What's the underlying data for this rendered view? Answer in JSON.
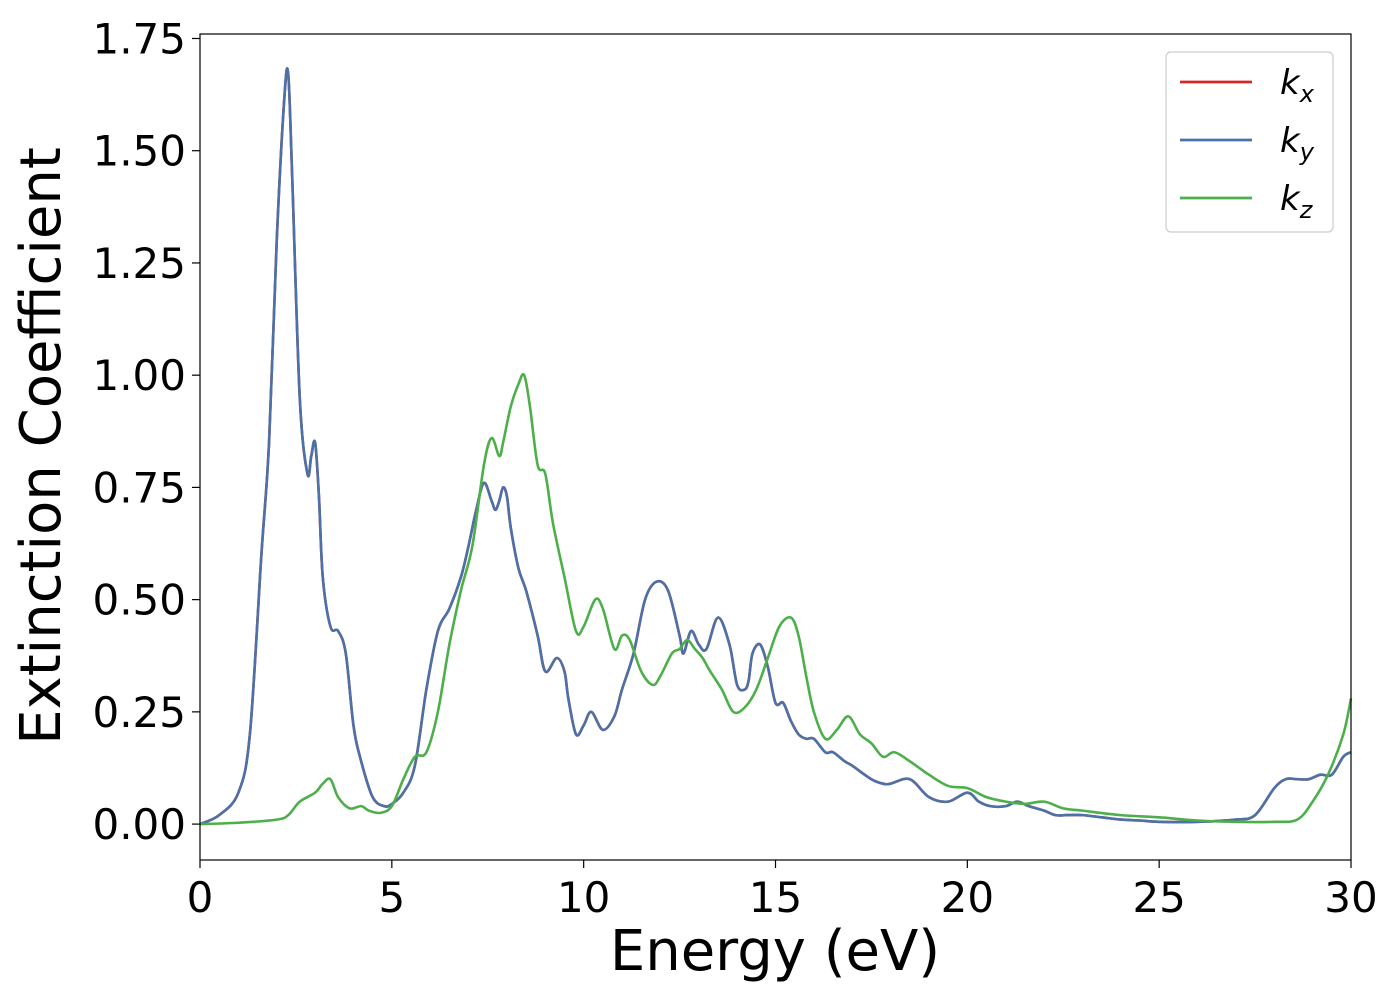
{
  "chart_data": {
    "type": "line",
    "xlabel": "Energy (eV)",
    "ylabel": "Extinction Coefficient",
    "xlim": [
      0,
      30
    ],
    "ylim": [
      -0.08,
      1.76
    ],
    "xticks": [
      0,
      5,
      10,
      15,
      20,
      25,
      30
    ],
    "xtick_labels": [
      "0",
      "5",
      "10",
      "15",
      "20",
      "25",
      "30"
    ],
    "yticks": [
      0.0,
      0.25,
      0.5,
      0.75,
      1.0,
      1.25,
      1.5,
      1.75
    ],
    "ytick_labels": [
      "0.00",
      "0.25",
      "0.50",
      "0.75",
      "1.00",
      "1.25",
      "1.50",
      "1.75"
    ],
    "grid": false,
    "legend_position": "top-right",
    "series": [
      {
        "name": "k_x",
        "label_main": "k",
        "label_sub": "x",
        "color": "#d62728",
        "x": [
          0,
          0.5,
          1.0,
          1.3,
          1.6,
          1.8,
          2.0,
          2.2,
          2.3,
          2.4,
          2.6,
          2.8,
          2.9,
          3.0,
          3.1,
          3.2,
          3.4,
          3.6,
          3.8,
          4.0,
          4.2,
          4.5,
          4.8,
          5.0,
          5.3,
          5.6,
          5.9,
          6.2,
          6.5,
          6.8,
          7.0,
          7.2,
          7.4,
          7.6,
          7.7,
          7.8,
          7.9,
          8.0,
          8.1,
          8.3,
          8.5,
          8.8,
          9.0,
          9.3,
          9.5,
          9.6,
          9.8,
          10.0,
          10.2,
          10.5,
          10.8,
          11.0,
          11.3,
          11.6,
          11.9,
          12.2,
          12.5,
          12.6,
          12.8,
          13.0,
          13.2,
          13.5,
          13.8,
          14.0,
          14.2,
          14.3,
          14.4,
          14.6,
          14.8,
          15.0,
          15.2,
          15.4,
          15.6,
          15.8,
          16.0,
          16.3,
          16.5,
          16.8,
          17.0,
          17.5,
          17.8,
          18.0,
          18.5,
          19.0,
          19.5,
          20.0,
          20.3,
          20.6,
          21.0,
          21.3,
          21.6,
          22.0,
          22.3,
          22.6,
          23.0,
          23.5,
          24.0,
          24.5,
          25.0,
          26.0,
          27.0,
          27.5,
          28.0,
          28.3,
          28.6,
          28.9,
          29.2,
          29.5,
          29.8,
          30.0
        ],
        "y": [
          0.0,
          0.02,
          0.07,
          0.2,
          0.6,
          0.85,
          1.3,
          1.62,
          1.67,
          1.45,
          0.95,
          0.78,
          0.82,
          0.85,
          0.73,
          0.55,
          0.44,
          0.43,
          0.38,
          0.22,
          0.14,
          0.06,
          0.04,
          0.045,
          0.07,
          0.13,
          0.3,
          0.43,
          0.48,
          0.55,
          0.62,
          0.7,
          0.76,
          0.72,
          0.7,
          0.72,
          0.75,
          0.73,
          0.66,
          0.57,
          0.52,
          0.42,
          0.34,
          0.37,
          0.34,
          0.28,
          0.2,
          0.22,
          0.25,
          0.21,
          0.24,
          0.3,
          0.38,
          0.5,
          0.54,
          0.52,
          0.42,
          0.38,
          0.43,
          0.4,
          0.39,
          0.46,
          0.4,
          0.31,
          0.3,
          0.32,
          0.38,
          0.4,
          0.35,
          0.27,
          0.27,
          0.23,
          0.2,
          0.19,
          0.19,
          0.16,
          0.16,
          0.14,
          0.13,
          0.1,
          0.09,
          0.09,
          0.1,
          0.06,
          0.05,
          0.07,
          0.05,
          0.04,
          0.04,
          0.05,
          0.04,
          0.03,
          0.02,
          0.02,
          0.02,
          0.015,
          0.01,
          0.008,
          0.005,
          0.005,
          0.01,
          0.02,
          0.08,
          0.1,
          0.1,
          0.1,
          0.11,
          0.11,
          0.15,
          0.16
        ],
        "draw_order": 0
      },
      {
        "name": "k_y",
        "label_main": "k",
        "label_sub": "y",
        "color": "#4a72a8",
        "x": [
          0,
          0.5,
          1.0,
          1.3,
          1.6,
          1.8,
          2.0,
          2.2,
          2.3,
          2.4,
          2.6,
          2.8,
          2.9,
          3.0,
          3.1,
          3.2,
          3.4,
          3.6,
          3.8,
          4.0,
          4.2,
          4.5,
          4.8,
          5.0,
          5.3,
          5.6,
          5.9,
          6.2,
          6.5,
          6.8,
          7.0,
          7.2,
          7.4,
          7.6,
          7.7,
          7.8,
          7.9,
          8.0,
          8.1,
          8.3,
          8.5,
          8.8,
          9.0,
          9.3,
          9.5,
          9.6,
          9.8,
          10.0,
          10.2,
          10.5,
          10.8,
          11.0,
          11.3,
          11.6,
          11.9,
          12.2,
          12.5,
          12.6,
          12.8,
          13.0,
          13.2,
          13.5,
          13.8,
          14.0,
          14.2,
          14.3,
          14.4,
          14.6,
          14.8,
          15.0,
          15.2,
          15.4,
          15.6,
          15.8,
          16.0,
          16.3,
          16.5,
          16.8,
          17.0,
          17.5,
          17.8,
          18.0,
          18.5,
          19.0,
          19.5,
          20.0,
          20.3,
          20.6,
          21.0,
          21.3,
          21.6,
          22.0,
          22.3,
          22.6,
          23.0,
          23.5,
          24.0,
          24.5,
          25.0,
          26.0,
          27.0,
          27.5,
          28.0,
          28.3,
          28.6,
          28.9,
          29.2,
          29.5,
          29.8,
          30.0
        ],
        "y": [
          0.0,
          0.02,
          0.07,
          0.2,
          0.6,
          0.85,
          1.3,
          1.62,
          1.67,
          1.45,
          0.95,
          0.78,
          0.82,
          0.85,
          0.73,
          0.55,
          0.44,
          0.43,
          0.38,
          0.22,
          0.14,
          0.06,
          0.04,
          0.045,
          0.07,
          0.13,
          0.3,
          0.43,
          0.48,
          0.55,
          0.62,
          0.7,
          0.76,
          0.72,
          0.7,
          0.72,
          0.75,
          0.73,
          0.66,
          0.57,
          0.52,
          0.42,
          0.34,
          0.37,
          0.34,
          0.28,
          0.2,
          0.22,
          0.25,
          0.21,
          0.24,
          0.3,
          0.38,
          0.5,
          0.54,
          0.52,
          0.42,
          0.38,
          0.43,
          0.4,
          0.39,
          0.46,
          0.4,
          0.31,
          0.3,
          0.32,
          0.38,
          0.4,
          0.35,
          0.27,
          0.27,
          0.23,
          0.2,
          0.19,
          0.19,
          0.16,
          0.16,
          0.14,
          0.13,
          0.1,
          0.09,
          0.09,
          0.1,
          0.06,
          0.05,
          0.07,
          0.05,
          0.04,
          0.04,
          0.05,
          0.04,
          0.03,
          0.02,
          0.02,
          0.02,
          0.015,
          0.01,
          0.008,
          0.005,
          0.005,
          0.01,
          0.02,
          0.08,
          0.1,
          0.1,
          0.1,
          0.11,
          0.11,
          0.15,
          0.16
        ],
        "draw_order": 1
      },
      {
        "name": "k_z",
        "label_main": "k",
        "label_sub": "z",
        "color": "#4daf4a",
        "x": [
          0,
          1.0,
          2.0,
          2.3,
          2.6,
          3.0,
          3.2,
          3.4,
          3.6,
          3.9,
          4.2,
          4.4,
          4.7,
          5.0,
          5.3,
          5.6,
          5.9,
          6.2,
          6.5,
          6.8,
          7.1,
          7.4,
          7.6,
          7.8,
          7.9,
          8.1,
          8.3,
          8.45,
          8.6,
          8.8,
          9.0,
          9.2,
          9.5,
          9.8,
          10.0,
          10.3,
          10.5,
          10.8,
          11.0,
          11.2,
          11.5,
          11.8,
          12.0,
          12.3,
          12.5,
          12.7,
          12.9,
          13.1,
          13.3,
          13.6,
          13.9,
          14.2,
          14.5,
          14.8,
          15.1,
          15.4,
          15.6,
          15.8,
          16.0,
          16.3,
          16.6,
          16.9,
          17.2,
          17.5,
          17.8,
          18.1,
          18.5,
          19.0,
          19.5,
          20.0,
          20.5,
          21.0,
          21.5,
          22.0,
          22.5,
          23.0,
          24.0,
          25.0,
          26.0,
          27.0,
          28.0,
          28.6,
          29.0,
          29.4,
          29.8,
          30.0
        ],
        "y": [
          0.0,
          0.003,
          0.01,
          0.02,
          0.05,
          0.07,
          0.09,
          0.1,
          0.06,
          0.035,
          0.04,
          0.03,
          0.025,
          0.04,
          0.1,
          0.15,
          0.16,
          0.25,
          0.4,
          0.52,
          0.62,
          0.8,
          0.86,
          0.82,
          0.85,
          0.93,
          0.98,
          1.0,
          0.93,
          0.8,
          0.78,
          0.67,
          0.55,
          0.43,
          0.44,
          0.5,
          0.48,
          0.39,
          0.42,
          0.41,
          0.34,
          0.31,
          0.33,
          0.38,
          0.39,
          0.41,
          0.39,
          0.37,
          0.34,
          0.3,
          0.25,
          0.26,
          0.3,
          0.37,
          0.44,
          0.46,
          0.42,
          0.33,
          0.25,
          0.19,
          0.21,
          0.24,
          0.2,
          0.18,
          0.15,
          0.16,
          0.14,
          0.11,
          0.085,
          0.08,
          0.06,
          0.05,
          0.045,
          0.05,
          0.035,
          0.03,
          0.02,
          0.015,
          0.008,
          0.005,
          0.005,
          0.01,
          0.05,
          0.11,
          0.2,
          0.28
        ],
        "draw_order": 2
      }
    ]
  }
}
